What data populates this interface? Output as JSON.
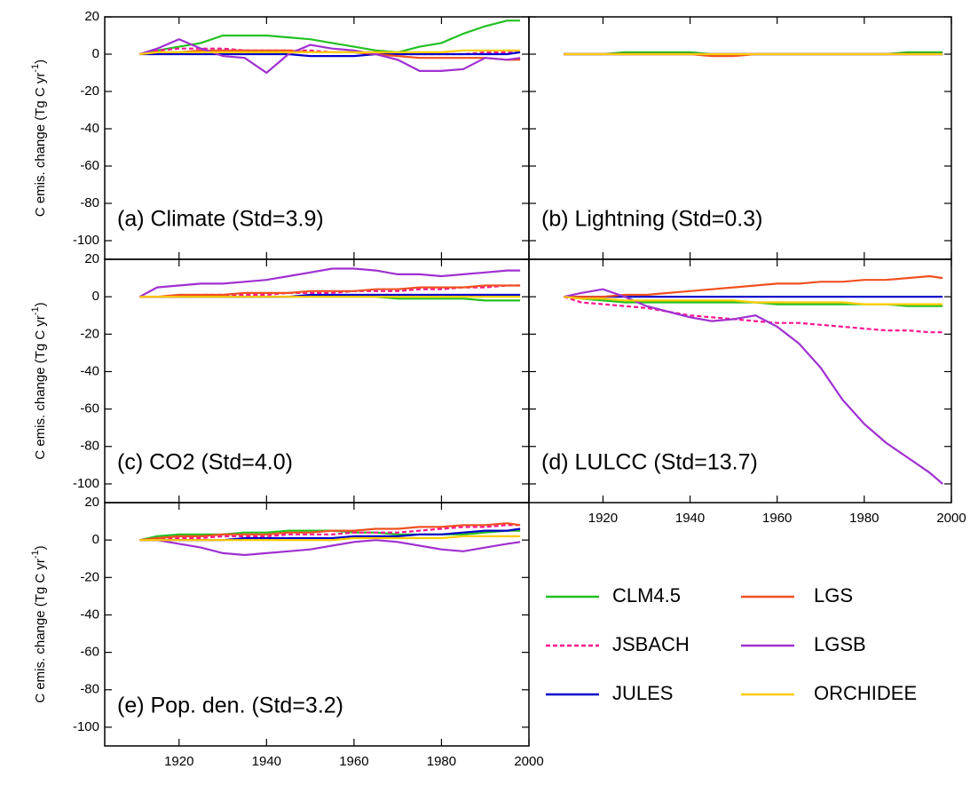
{
  "chart_data": [
    {
      "type": "line",
      "annotation": "(a) Climate (Std=3.9)",
      "ylabel": "C emis. change (Tg C yr",
      "ylabel_sup": "-1",
      "ylabel_end": ")",
      "xlim": [
        1903,
        2000
      ],
      "ylim": [
        -110,
        20
      ],
      "xticks": [
        1920,
        1940,
        1960,
        1980,
        2000
      ],
      "yticks": [
        20,
        0,
        -20,
        -40,
        -60,
        -80,
        -100
      ],
      "xtick_labels": false,
      "ytick_labels": true,
      "x": [
        1911,
        1915,
        1920,
        1925,
        1930,
        1935,
        1940,
        1945,
        1950,
        1955,
        1960,
        1965,
        1970,
        1975,
        1980,
        1985,
        1990,
        1995,
        1998
      ],
      "series": [
        {
          "name": "CLM4.5",
          "color": "#22c022",
          "dashed": false,
          "values": [
            0,
            2,
            4,
            6,
            10,
            10,
            10,
            9,
            8,
            6,
            4,
            2,
            1,
            4,
            6,
            11,
            15,
            18,
            18
          ]
        },
        {
          "name": "JSBACH",
          "color": "#ff1493",
          "dashed": true,
          "values": [
            0,
            2,
            3,
            3,
            3,
            2,
            2,
            2,
            2,
            1,
            1,
            1,
            0,
            0,
            0,
            0,
            1,
            1,
            1
          ]
        },
        {
          "name": "JULES",
          "color": "#0000cc",
          "dashed": false,
          "values": [
            0,
            0,
            0,
            0,
            0,
            0,
            0,
            0,
            -1,
            -1,
            -1,
            0,
            0,
            0,
            0,
            0,
            0,
            0,
            1
          ]
        },
        {
          "name": "LGS",
          "color": "#f05020",
          "dashed": false,
          "values": [
            0,
            1,
            1,
            2,
            2,
            2,
            2,
            2,
            1,
            1,
            1,
            0,
            -1,
            -2,
            -2,
            -2,
            -2,
            -3,
            -3
          ]
        },
        {
          "name": "LGSB",
          "color": "#a030d0",
          "dashed": false,
          "values": [
            0,
            3,
            8,
            3,
            -1,
            -2,
            -10,
            0,
            5,
            3,
            2,
            0,
            -3,
            -9,
            -9,
            -8,
            -2,
            -3,
            -2
          ]
        },
        {
          "name": "ORCHIDEE",
          "color": "#ffcc00",
          "dashed": false,
          "values": [
            0,
            1,
            1,
            1,
            1,
            1,
            1,
            1,
            1,
            1,
            1,
            1,
            1,
            1,
            1,
            2,
            2,
            2,
            2
          ]
        }
      ]
    },
    {
      "type": "line",
      "annotation": "(b) Lightning (Std=0.3)",
      "xlim": [
        1903,
        2000
      ],
      "ylim": [
        -110,
        20
      ],
      "xticks": [
        1920,
        1940,
        1960,
        1980,
        2000
      ],
      "yticks": [
        20,
        0,
        -20,
        -40,
        -60,
        -80,
        -100
      ],
      "xtick_labels": false,
      "ytick_labels": false,
      "x": [
        1911,
        1915,
        1920,
        1925,
        1930,
        1935,
        1940,
        1945,
        1950,
        1955,
        1960,
        1965,
        1970,
        1975,
        1980,
        1985,
        1990,
        1995,
        1998
      ],
      "series": [
        {
          "name": "CLM4.5",
          "color": "#22c022",
          "dashed": false,
          "values": [
            0,
            0,
            0,
            1,
            1,
            1,
            1,
            0,
            0,
            0,
            0,
            0,
            0,
            0,
            0,
            0,
            1,
            1,
            1
          ]
        },
        {
          "name": "JSBACH",
          "color": "#ff1493",
          "dashed": true,
          "values": [
            0,
            0,
            0,
            0,
            0,
            0,
            0,
            0,
            0,
            0,
            0,
            0,
            0,
            0,
            0,
            0,
            0,
            0,
            0
          ]
        },
        {
          "name": "JULES",
          "color": "#0000cc",
          "dashed": false,
          "values": [
            0,
            0,
            0,
            0,
            0,
            0,
            0,
            0,
            0,
            0,
            0,
            0,
            0,
            0,
            0,
            0,
            0,
            0,
            0
          ]
        },
        {
          "name": "LGS",
          "color": "#f05020",
          "dashed": false,
          "values": [
            0,
            0,
            0,
            0,
            0,
            0,
            0,
            -1,
            -1,
            0,
            0,
            0,
            0,
            0,
            0,
            0,
            0,
            0,
            0
          ]
        },
        {
          "name": "LGSB",
          "color": "#a030d0",
          "dashed": false,
          "values": [
            0,
            0,
            0,
            0,
            0,
            0,
            0,
            0,
            0,
            0,
            0,
            0,
            0,
            0,
            0,
            0,
            0,
            0,
            0
          ]
        },
        {
          "name": "ORCHIDEE",
          "color": "#ffcc00",
          "dashed": false,
          "values": [
            0,
            0,
            0,
            0,
            0,
            0,
            0,
            0,
            0,
            0,
            0,
            0,
            0,
            0,
            0,
            0,
            0,
            0,
            0
          ]
        }
      ]
    },
    {
      "type": "line",
      "annotation": "(c) CO2 (Std=4.0)",
      "ylabel": "C emis. change (Tg C yr",
      "ylabel_sup": "-1",
      "ylabel_end": ")",
      "xlim": [
        1903,
        2000
      ],
      "ylim": [
        -110,
        20
      ],
      "xticks": [
        1920,
        1940,
        1960,
        1980,
        2000
      ],
      "yticks": [
        20,
        0,
        -20,
        -40,
        -60,
        -80,
        -100
      ],
      "xtick_labels": false,
      "ytick_labels": true,
      "x": [
        1911,
        1915,
        1920,
        1925,
        1930,
        1935,
        1940,
        1945,
        1950,
        1955,
        1960,
        1965,
        1970,
        1975,
        1980,
        1985,
        1990,
        1995,
        1998
      ],
      "series": [
        {
          "name": "CLM4.5",
          "color": "#22c022",
          "dashed": false,
          "values": [
            0,
            0,
            0,
            0,
            0,
            0,
            0,
            0,
            0,
            0,
            0,
            0,
            -1,
            -1,
            -1,
            -1,
            -2,
            -2,
            -2
          ]
        },
        {
          "name": "JSBACH",
          "color": "#ff1493",
          "dashed": true,
          "values": [
            0,
            0,
            0,
            1,
            1,
            1,
            1,
            2,
            2,
            2,
            3,
            3,
            3,
            4,
            4,
            5,
            5,
            6,
            6
          ]
        },
        {
          "name": "JULES",
          "color": "#0000cc",
          "dashed": false,
          "values": [
            0,
            0,
            0,
            0,
            0,
            0,
            0,
            0,
            1,
            1,
            1,
            1,
            1,
            1,
            1,
            1,
            1,
            1,
            1
          ]
        },
        {
          "name": "LGS",
          "color": "#f05020",
          "dashed": false,
          "values": [
            0,
            0,
            1,
            1,
            1,
            2,
            2,
            2,
            3,
            3,
            3,
            4,
            4,
            5,
            5,
            5,
            6,
            6,
            6
          ]
        },
        {
          "name": "LGSB",
          "color": "#a030d0",
          "dashed": false,
          "values": [
            0,
            5,
            6,
            7,
            7,
            8,
            9,
            11,
            13,
            15,
            15,
            14,
            12,
            12,
            11,
            12,
            13,
            14,
            14
          ]
        },
        {
          "name": "ORCHIDEE",
          "color": "#ffcc00",
          "dashed": false,
          "values": [
            0,
            0,
            0,
            0,
            0,
            0,
            0,
            0,
            0,
            0,
            0,
            0,
            0,
            0,
            0,
            0,
            0,
            0,
            0
          ]
        }
      ]
    },
    {
      "type": "line",
      "annotation": "(d) LULCC (Std=13.7)",
      "xlim": [
        1903,
        2000
      ],
      "ylim": [
        -110,
        20
      ],
      "xticks": [
        1920,
        1940,
        1960,
        1980,
        2000
      ],
      "yticks": [
        20,
        0,
        -20,
        -40,
        -60,
        -80,
        -100
      ],
      "xtick_labels": true,
      "ytick_labels": false,
      "x": [
        1911,
        1915,
        1920,
        1925,
        1930,
        1935,
        1940,
        1945,
        1950,
        1955,
        1960,
        1965,
        1970,
        1975,
        1980,
        1985,
        1990,
        1995,
        1998
      ],
      "series": [
        {
          "name": "CLM4.5",
          "color": "#22c022",
          "dashed": false,
          "values": [
            0,
            -1,
            -2,
            -3,
            -3,
            -3,
            -3,
            -3,
            -3,
            -3,
            -4,
            -4,
            -4,
            -4,
            -4,
            -4,
            -5,
            -5,
            -5
          ]
        },
        {
          "name": "JSBACH",
          "color": "#ff1493",
          "dashed": true,
          "values": [
            0,
            -3,
            -4,
            -5,
            -6,
            -8,
            -10,
            -11,
            -12,
            -13,
            -14,
            -14,
            -15,
            -16,
            -17,
            -18,
            -18,
            -19,
            -19
          ]
        },
        {
          "name": "JULES",
          "color": "#0000cc",
          "dashed": false,
          "values": [
            0,
            0,
            0,
            0,
            0,
            0,
            0,
            0,
            0,
            0,
            0,
            0,
            0,
            0,
            0,
            0,
            0,
            0,
            0
          ]
        },
        {
          "name": "LGS",
          "color": "#f05020",
          "dashed": false,
          "values": [
            0,
            0,
            0,
            1,
            1,
            2,
            3,
            4,
            5,
            6,
            7,
            7,
            8,
            8,
            9,
            9,
            10,
            11,
            10
          ]
        },
        {
          "name": "LGSB",
          "color": "#a030d0",
          "dashed": false,
          "values": [
            0,
            2,
            4,
            0,
            -5,
            -8,
            -11,
            -13,
            -12,
            -10,
            -16,
            -25,
            -38,
            -55,
            -68,
            -78,
            -86,
            -94,
            -100
          ]
        },
        {
          "name": "ORCHIDEE",
          "color": "#ffcc00",
          "dashed": false,
          "values": [
            0,
            -1,
            -1,
            -2,
            -2,
            -2,
            -2,
            -2,
            -2,
            -3,
            -3,
            -3,
            -3,
            -3,
            -4,
            -4,
            -4,
            -4,
            -4
          ]
        }
      ]
    },
    {
      "type": "line",
      "annotation": "(e) Pop. den. (Std=3.2)",
      "ylabel": "C emis. change (Tg C yr",
      "ylabel_sup": "-1",
      "ylabel_end": ")",
      "xlim": [
        1903,
        2000
      ],
      "ylim": [
        -110,
        20
      ],
      "xticks": [
        1920,
        1940,
        1960,
        1980,
        2000
      ],
      "yticks": [
        20,
        0,
        -20,
        -40,
        -60,
        -80,
        -100
      ],
      "xtick_labels": true,
      "ytick_labels": true,
      "x": [
        1911,
        1915,
        1920,
        1925,
        1930,
        1935,
        1940,
        1945,
        1950,
        1955,
        1960,
        1965,
        1970,
        1975,
        1980,
        1985,
        1990,
        1995,
        1998
      ],
      "series": [
        {
          "name": "CLM4.5",
          "color": "#22c022",
          "dashed": false,
          "values": [
            0,
            2,
            3,
            3,
            3,
            4,
            4,
            5,
            5,
            5,
            4,
            4,
            3,
            3,
            3,
            3,
            4,
            5,
            5
          ]
        },
        {
          "name": "JSBACH",
          "color": "#ff1493",
          "dashed": true,
          "values": [
            0,
            1,
            1,
            1,
            2,
            2,
            2,
            3,
            3,
            3,
            4,
            4,
            4,
            5,
            6,
            7,
            7,
            8,
            8
          ]
        },
        {
          "name": "JULES",
          "color": "#0000cc",
          "dashed": false,
          "values": [
            0,
            0,
            0,
            0,
            0,
            1,
            1,
            1,
            1,
            1,
            2,
            2,
            2,
            3,
            3,
            4,
            5,
            5,
            6
          ]
        },
        {
          "name": "LGS",
          "color": "#f05020",
          "dashed": false,
          "values": [
            0,
            1,
            2,
            2,
            3,
            3,
            3,
            4,
            4,
            5,
            5,
            6,
            6,
            7,
            7,
            8,
            8,
            9,
            8
          ]
        },
        {
          "name": "LGSB",
          "color": "#a030d0",
          "dashed": false,
          "values": [
            0,
            0,
            -2,
            -4,
            -7,
            -8,
            -7,
            -6,
            -5,
            -3,
            -1,
            0,
            -1,
            -3,
            -5,
            -6,
            -4,
            -2,
            -1
          ]
        },
        {
          "name": "ORCHIDEE",
          "color": "#ffcc00",
          "dashed": false,
          "values": [
            0,
            0,
            0,
            0,
            0,
            0,
            0,
            0,
            0,
            0,
            1,
            1,
            1,
            1,
            1,
            2,
            2,
            2,
            2
          ]
        }
      ]
    }
  ]
}
